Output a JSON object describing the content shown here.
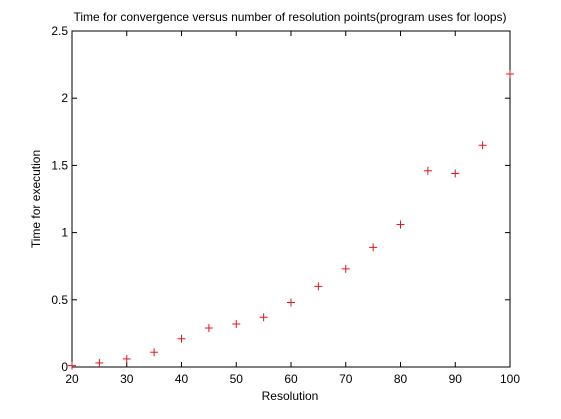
{
  "chart_data": {
    "type": "scatter",
    "title": "Time for convergence versus number of resolution points(program uses for loops)",
    "xlabel": "Resolution",
    "ylabel": "Time for execution",
    "xlim": [
      20,
      100
    ],
    "ylim": [
      0,
      2.5
    ],
    "xticks": [
      "20",
      "30",
      "40",
      "50",
      "60",
      "70",
      "80",
      "90",
      "100"
    ],
    "yticks": [
      "0",
      "0.5",
      "1",
      "1.5",
      "2",
      "2.5"
    ],
    "grid": false,
    "legend": "none",
    "marker": "+",
    "marker_color": "#e8141c",
    "series": [
      {
        "x": [
          20,
          25,
          30,
          35,
          40,
          45,
          50,
          55,
          60,
          65,
          70,
          75,
          80,
          85,
          90,
          95,
          100
        ],
        "y": [
          0.01,
          0.03,
          0.06,
          0.11,
          0.21,
          0.29,
          0.32,
          0.37,
          0.48,
          0.6,
          0.73,
          0.89,
          1.06,
          1.46,
          1.44,
          1.65,
          2.18
        ]
      }
    ]
  }
}
